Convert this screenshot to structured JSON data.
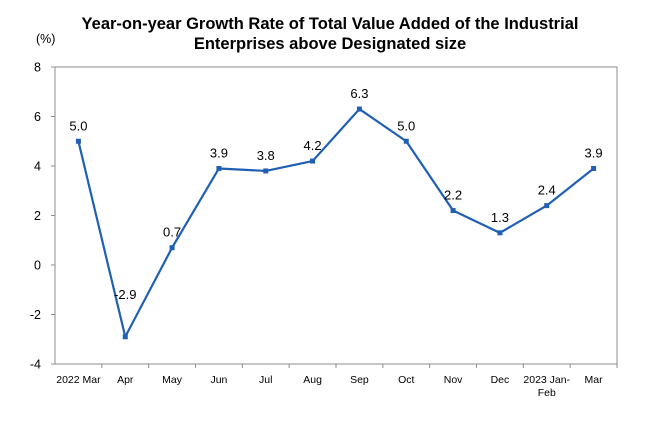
{
  "chart_data": {
    "type": "line",
    "title_line1": "Year-on-year Growth Rate of Total Value Added of the Industrial",
    "title_line2": "Enterprises above Designated size",
    "unit": "(%)",
    "categories": [
      "2022 Mar",
      "Apr",
      "May",
      "Jun",
      "Jul",
      "Aug",
      "Sep",
      "Oct",
      "Nov",
      "Dec",
      "2023 Jan-Feb",
      "Mar"
    ],
    "values": [
      5.0,
      -2.9,
      0.7,
      3.9,
      3.8,
      4.2,
      6.3,
      5.0,
      2.2,
      1.3,
      2.4,
      3.9
    ],
    "value_labels": [
      "5.0",
      "-2.9",
      "0.7",
      "3.9",
      "3.8",
      "4.2",
      "6.3",
      "5.0",
      "2.2",
      "1.3",
      "2.4",
      "3.9"
    ],
    "y_ticks": [
      "8",
      "6",
      "4",
      "2",
      "0",
      "-2",
      "-4"
    ],
    "ylim": [
      -4,
      8
    ],
    "line_color": "#1f5fb4",
    "grid": false,
    "legend": "none"
  }
}
